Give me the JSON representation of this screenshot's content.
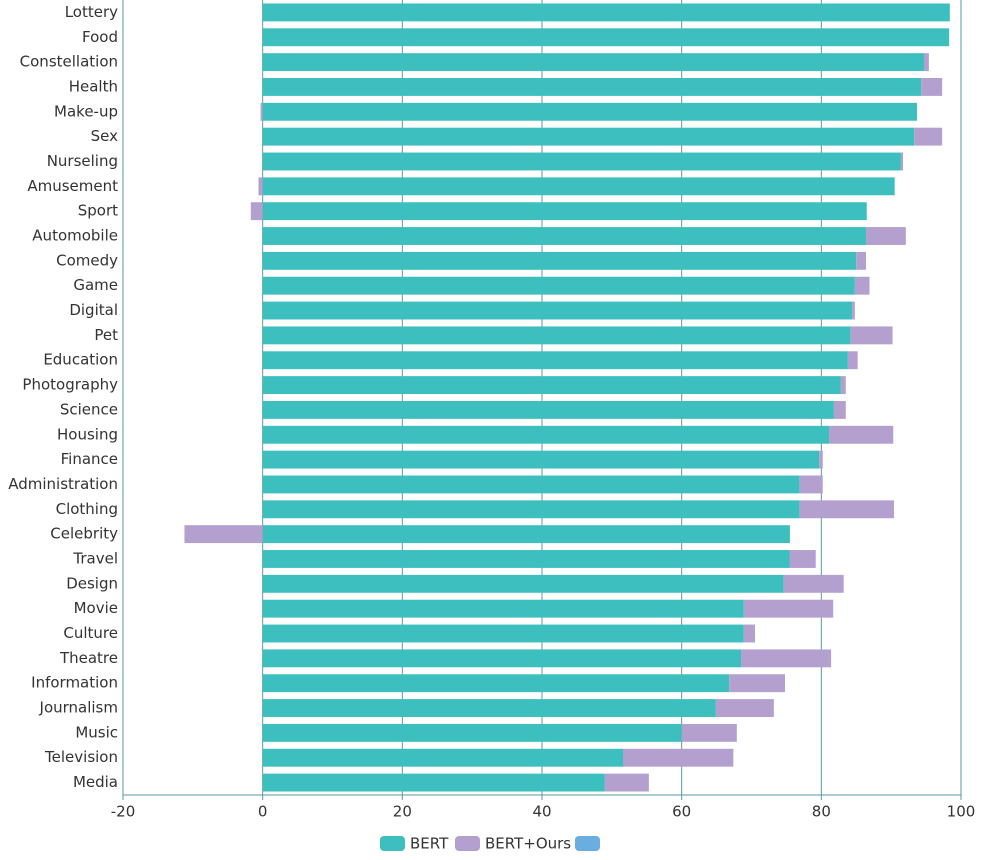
{
  "chart_data": {
    "type": "bar",
    "orientation": "horizontal",
    "stacked": true,
    "categories": [
      "Lottery",
      "Food",
      "Constellation",
      "Health",
      "Make-up",
      "Sex",
      "Nurseling",
      "Amusement",
      "Sport",
      "Automobile",
      "Comedy",
      "Game",
      "Digital",
      "Pet",
      "Education",
      "Photography",
      "Science",
      "Housing",
      "Finance",
      "Administration",
      "Clothing",
      "Celebrity",
      "Travel",
      "Design",
      "Movie",
      "Culture",
      "Theatre",
      "Information",
      "Journalism",
      "Music",
      "Television",
      "Media"
    ],
    "series": [
      {
        "name": "BERT",
        "color": "#3dbfc0",
        "values": [
          98.4,
          98.3,
          94.7,
          94.3,
          93.7,
          93.3,
          91.4,
          90.5,
          86.5,
          86.4,
          85.0,
          84.8,
          84.4,
          84.2,
          83.8,
          82.8,
          81.8,
          81.1,
          79.7,
          76.9,
          76.9,
          75.5,
          75.5,
          74.6,
          68.9,
          68.9,
          68.5,
          66.8,
          64.9,
          60.0,
          51.6,
          49.0
        ]
      },
      {
        "name": "BERT+Ours",
        "color": "#b3a0cf",
        "values": [
          0,
          0,
          0.7,
          3.0,
          -0.3,
          4.0,
          0.3,
          -0.6,
          -1.7,
          5.7,
          1.4,
          2.1,
          0.4,
          6.0,
          1.4,
          0.7,
          1.7,
          9.2,
          0.5,
          3.3,
          13.5,
          -11.2,
          3.7,
          8.6,
          12.8,
          1.6,
          12.9,
          8.0,
          8.3,
          7.9,
          15.8,
          6.3
        ]
      }
    ],
    "xlim": [
      -20,
      100
    ],
    "xticks": [
      -20,
      0,
      20,
      40,
      60,
      80,
      100
    ],
    "grid": true
  }
}
